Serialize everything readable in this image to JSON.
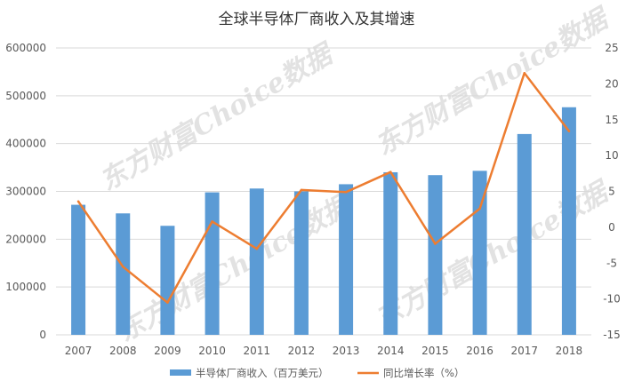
{
  "chart_data": {
    "type": "bar",
    "title": "全球半导体厂商收入及其增速",
    "categories": [
      "2007",
      "2008",
      "2009",
      "2010",
      "2011",
      "2012",
      "2013",
      "2014",
      "2015",
      "2016",
      "2017",
      "2018"
    ],
    "series": [
      {
        "name": "半导体厂商收入（百万美元）",
        "type": "bar",
        "axis": "left",
        "color": "#5B9BD5",
        "values": [
          272000,
          254000,
          228000,
          298000,
          306000,
          300000,
          315000,
          340000,
          334000,
          343000,
          420000,
          476000
        ]
      },
      {
        "name": "同比增长率（%）",
        "type": "line",
        "axis": "right",
        "color": "#ED7D31",
        "values": [
          3.6,
          -5.5,
          -10.5,
          0.8,
          -3.0,
          5.2,
          4.9,
          7.7,
          -2.3,
          2.6,
          21.5,
          13.4
        ]
      }
    ],
    "y_left": {
      "lim": [
        0,
        600000
      ],
      "ticks": [
        "0",
        "100000",
        "200000",
        "300000",
        "400000",
        "500000",
        "600000"
      ]
    },
    "y_right": {
      "lim": [
        -15,
        25
      ],
      "ticks": [
        "-15",
        "-10",
        "-5",
        "0",
        "5",
        "10",
        "15",
        "20",
        "25"
      ]
    },
    "grid": true,
    "legend": "bottom-center",
    "watermark": "东方财富Choice数据"
  }
}
